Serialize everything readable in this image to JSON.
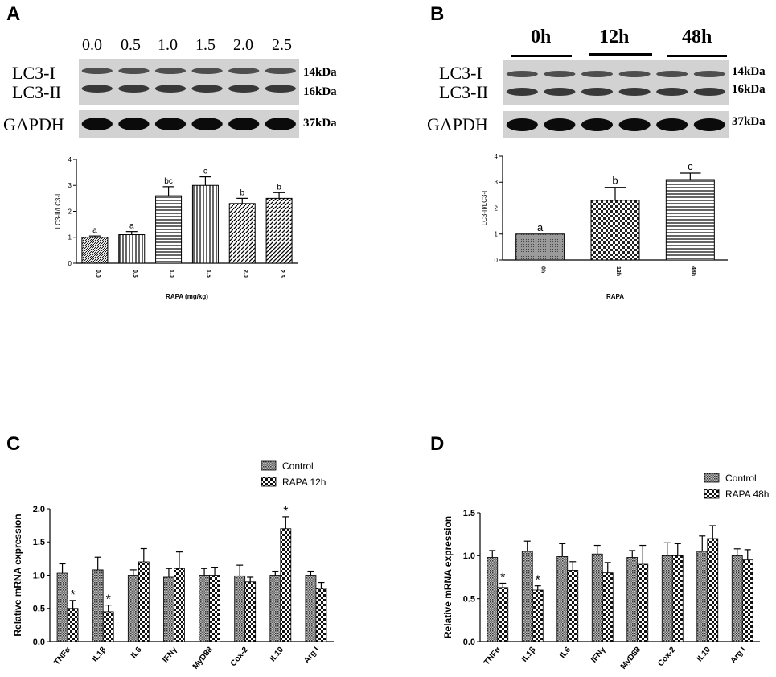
{
  "panel_letters": [
    "A",
    "B",
    "C",
    "D"
  ],
  "blot_a": {
    "doses": [
      "0.0",
      "0.5",
      "1.0",
      "1.5",
      "2.0",
      "2.5"
    ],
    "labels": {
      "lc3_i": "LC3-I",
      "lc3_ii": "LC3-II",
      "gapdh": "GAPDH"
    },
    "kda": {
      "lc3_i": "14kDa",
      "lc3_ii": "16kDa",
      "gapdh": "37kDa"
    }
  },
  "blot_b": {
    "times": [
      "0h",
      "12h",
      "48h"
    ],
    "labels": {
      "lc3_i": "LC3-I",
      "lc3_ii": "LC3-II",
      "gapdh": "GAPDH"
    },
    "kda": {
      "lc3_i": "14kDa",
      "lc3_ii": "16kDa",
      "gapdh": "37kDa"
    }
  },
  "chart_data": [
    {
      "panel": "A",
      "type": "bar",
      "categories": [
        "0.0",
        "0.5",
        "1.0",
        "1.5",
        "2.0",
        "2.5"
      ],
      "values": [
        1.0,
        1.1,
        2.6,
        3.0,
        2.3,
        2.5
      ],
      "errors": [
        0.05,
        0.12,
        0.35,
        0.33,
        0.2,
        0.22
      ],
      "annotations": [
        "a",
        "a",
        "bc",
        "c",
        "b",
        "b"
      ],
      "patterns": [
        "diag-fine",
        "vert",
        "horiz",
        "vert",
        "diag",
        "diag"
      ],
      "xlabel": "RAPA (mg/kg)",
      "ylabel": "LC3-II/LC3-I",
      "ylim": [
        0,
        4
      ],
      "yticks": [
        "0",
        "1",
        "2",
        "3",
        "4"
      ]
    },
    {
      "panel": "B",
      "type": "bar",
      "categories": [
        "0h",
        "12h",
        "48h"
      ],
      "values": [
        1.0,
        2.3,
        3.1
      ],
      "errors": [
        0.0,
        0.5,
        0.25
      ],
      "annotations": [
        "a",
        "b",
        "c"
      ],
      "patterns": [
        "fine",
        "check",
        "horiz"
      ],
      "xlabel": "RAPA",
      "ylabel": "LC3-II/LC3-I",
      "ylim": [
        0,
        4
      ],
      "yticks": [
        "0",
        "1",
        "2",
        "3",
        "4"
      ]
    },
    {
      "panel": "C",
      "type": "bar",
      "categories": [
        "TNFα",
        "IL1β",
        "IL6",
        "IFNγ",
        "MyD88",
        "Cox-2",
        "IL10",
        "Arg I"
      ],
      "series": [
        {
          "name": "Control",
          "values": [
            1.03,
            1.08,
            1.0,
            0.97,
            1.0,
            0.99,
            1.0,
            1.0
          ],
          "errors": [
            0.14,
            0.19,
            0.08,
            0.13,
            0.1,
            0.16,
            0.06,
            0.06
          ]
        },
        {
          "name": "RAPA 12h",
          "values": [
            0.5,
            0.45,
            1.2,
            1.1,
            1.0,
            0.9,
            1.7,
            0.8
          ],
          "errors": [
            0.12,
            0.1,
            0.2,
            0.25,
            0.12,
            0.07,
            0.18,
            0.09
          ]
        }
      ],
      "significance": [
        "*",
        "*",
        "",
        "",
        "",
        "",
        "*",
        ""
      ],
      "ylabel": "Relative mRNA expression",
      "ylim": [
        0,
        2.0
      ],
      "yticks": [
        "0.0",
        "0.5",
        "1.0",
        "1.5",
        "2.0"
      ],
      "legend_position": "top-right"
    },
    {
      "panel": "D",
      "type": "bar",
      "categories": [
        "TNFα",
        "IL1β",
        "IL6",
        "IFNγ",
        "MyD88",
        "Cox-2",
        "IL10",
        "Arg I"
      ],
      "series": [
        {
          "name": "Control",
          "values": [
            0.98,
            1.05,
            0.99,
            1.02,
            0.98,
            1.0,
            1.05,
            1.0
          ],
          "errors": [
            0.08,
            0.12,
            0.15,
            0.1,
            0.08,
            0.15,
            0.18,
            0.08
          ]
        },
        {
          "name": "RAPA 48h",
          "values": [
            0.63,
            0.6,
            0.83,
            0.8,
            0.9,
            1.0,
            1.2,
            0.95
          ],
          "errors": [
            0.05,
            0.05,
            0.1,
            0.12,
            0.22,
            0.14,
            0.15,
            0.12
          ]
        }
      ],
      "significance": [
        "*",
        "*",
        "",
        "",
        "",
        "",
        "",
        ""
      ],
      "ylabel": "Relative mRNA expression",
      "ylim": [
        0,
        1.5
      ],
      "yticks": [
        "0.0",
        "0.5",
        "1.0",
        "1.5"
      ],
      "legend_position": "top-right"
    }
  ]
}
